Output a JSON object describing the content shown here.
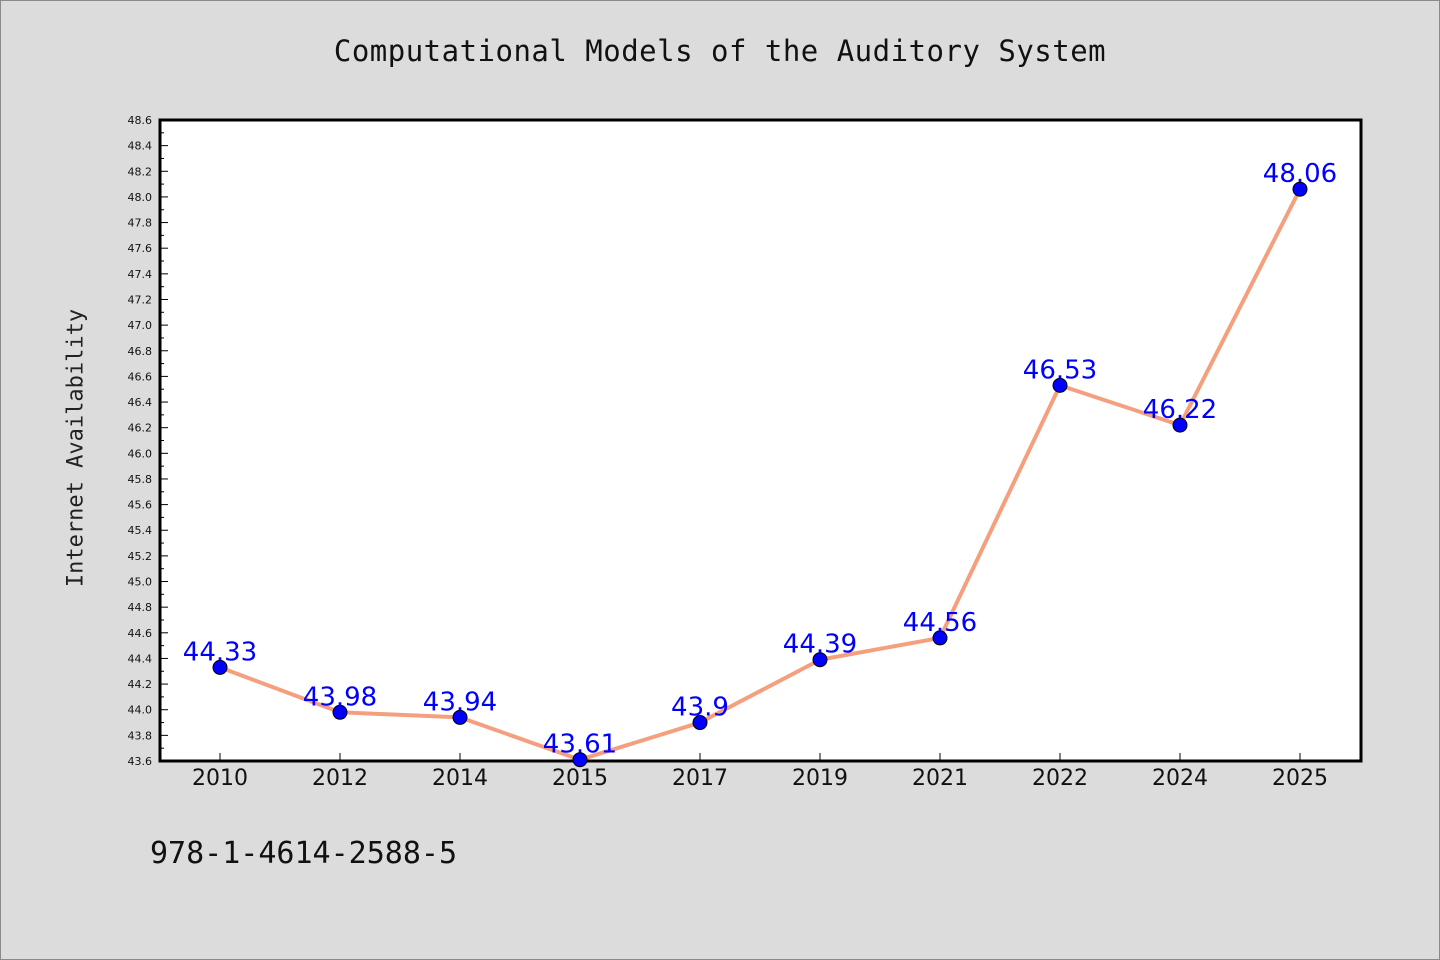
{
  "footer_text": "978-1-4614-2588-5",
  "chart_data": {
    "type": "line",
    "title": "Computational Models of the Auditory System",
    "xlabel": "",
    "ylabel": "Internet Availability",
    "categories": [
      "2010",
      "2012",
      "2014",
      "2015",
      "2017",
      "2019",
      "2021",
      "2022",
      "2024",
      "2025"
    ],
    "series": [
      {
        "values": [
          44.33,
          43.98,
          43.94,
          43.61,
          43.9,
          44.39,
          44.56,
          46.53,
          46.22,
          48.06
        ],
        "data_labels": [
          "44.33",
          "43.98",
          "43.94",
          "43.61",
          "43.9",
          "44.39",
          "44.56",
          "46.53",
          "46.22",
          "48.06"
        ]
      }
    ],
    "ylim": [
      43.6,
      48.6
    ],
    "ytick_step": 0.2,
    "grid": false,
    "legend": "none",
    "colors": {
      "line": "#f4a07e",
      "marker": "#0000ff",
      "data_label": "#0000ff",
      "plot_background": "#ffffff",
      "figure_background": "#dcdcdc"
    }
  }
}
